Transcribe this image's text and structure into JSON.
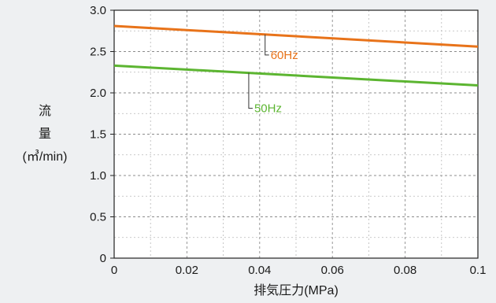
{
  "chart_data": {
    "type": "line",
    "xlabel": "排気圧力(MPa)",
    "ylabel_lines": [
      "流",
      "量",
      "(㎥/min)"
    ],
    "x_ticks": [
      "0",
      "0.02",
      "0.04",
      "0.06",
      "0.08",
      "0.1"
    ],
    "x_tick_values": [
      0,
      0.02,
      0.04,
      0.06,
      0.08,
      0.1
    ],
    "y_ticks": [
      "0",
      "0.5",
      "1.0",
      "1.5",
      "2.0",
      "2.5",
      "3.0"
    ],
    "y_tick_values": [
      0,
      0.5,
      1.0,
      1.5,
      2.0,
      2.5,
      3.0
    ],
    "xlim": [
      0,
      0.1
    ],
    "ylim": [
      0,
      3.0
    ],
    "x_minor_step": 0.01,
    "y_minor_step": 0.25,
    "grid": true,
    "series": [
      {
        "name": "60Hz",
        "color": "#e8731a",
        "x": [
          0,
          0.1
        ],
        "values": [
          2.81,
          2.56
        ],
        "label_anchor_x": 0.0415
      },
      {
        "name": "50Hz",
        "color": "#5cb531",
        "x": [
          0,
          0.1
        ],
        "values": [
          2.33,
          2.09
        ],
        "label_anchor_x": 0.037
      }
    ]
  }
}
